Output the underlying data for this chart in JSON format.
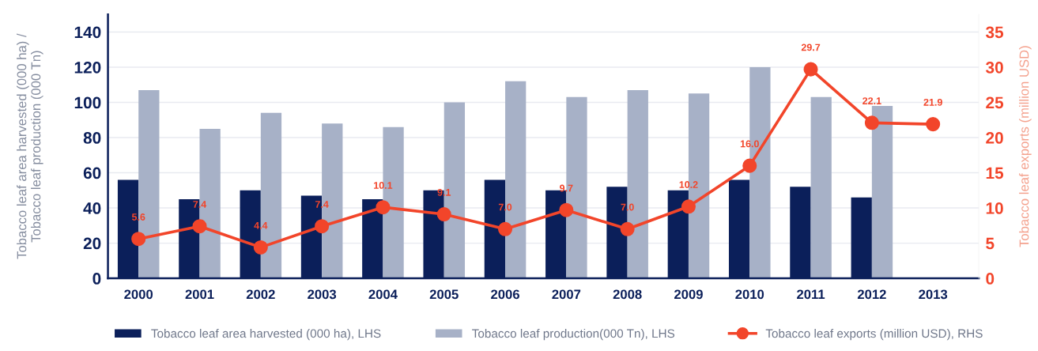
{
  "chart_data": {
    "type": "bar",
    "categories": [
      "2000",
      "2001",
      "2002",
      "2003",
      "2004",
      "2005",
      "2006",
      "2007",
      "2008",
      "2009",
      "2010",
      "2011",
      "2012",
      "2013"
    ],
    "ylabel": "Tobacco leaf area harvested (000 ha) /\nTobacco leaf production (000 Tn)",
    "y2label": "Tobacco leaf exports (million USD)",
    "ylim": [
      0,
      150
    ],
    "yticks": [
      0,
      20,
      40,
      60,
      80,
      100,
      120,
      140
    ],
    "y2lim": [
      0,
      37.5
    ],
    "y2ticks": [
      0,
      5,
      10,
      15,
      20,
      25,
      30,
      35
    ],
    "grid": "y",
    "legend": "bottom",
    "series": [
      {
        "name": "Tobacco leaf area harvested (000 ha), LHS",
        "color": "#0b1f5a",
        "values": [
          56,
          45,
          50,
          47,
          45,
          50,
          56,
          50,
          52,
          50,
          56,
          52,
          46,
          null
        ]
      },
      {
        "name": "Tobacco leaf production(000 Tn), LHS",
        "color": "#a7b1c7",
        "values": [
          107,
          85,
          94,
          88,
          86,
          100,
          112,
          103,
          107,
          105,
          120,
          103,
          98,
          null
        ]
      },
      {
        "name": "Tobacco leaf exports (million USD), RHS",
        "type": "line",
        "axis": "y2",
        "color": "#f2452a",
        "marker": "circle",
        "line_style": "solid",
        "values": [
          5.6,
          7.4,
          4.4,
          7.4,
          10.1,
          9.1,
          7.0,
          9.7,
          7.0,
          10.2,
          16.0,
          29.7,
          22.1,
          21.9
        ],
        "value_labels": [
          "5.6",
          "7.4",
          "4.4",
          "7.4",
          "10.1",
          "9.1",
          "7.0",
          "9.7",
          "7.0",
          "10.2",
          "16.0",
          "29.7",
          "22.1",
          "21.9"
        ]
      }
    ]
  }
}
